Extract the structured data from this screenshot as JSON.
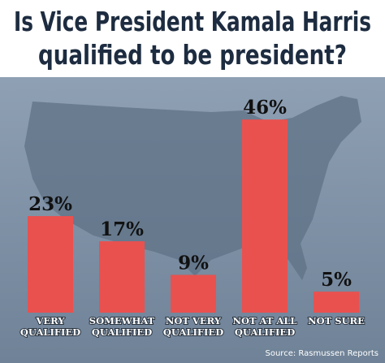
{
  "chart_data": {
    "type": "bar",
    "title": [
      "Is Vice President Kamala Harris",
      "qualified to be president?"
    ],
    "categories": [
      [
        "VERY",
        "QUALIFIED"
      ],
      [
        "SOMEWHAT",
        "QUALIFIED"
      ],
      [
        "NOT VERY",
        "QUALIFIED"
      ],
      [
        "NOT AT ALL",
        "QUALIFIED"
      ],
      [
        "NOT SURE"
      ]
    ],
    "values": [
      23,
      17,
      9,
      46,
      5
    ],
    "value_labels": [
      "23%",
      "17%",
      "9%",
      "46%",
      "5%"
    ],
    "color": "#e9514f",
    "source": "Source: Rasmussen Reports"
  }
}
